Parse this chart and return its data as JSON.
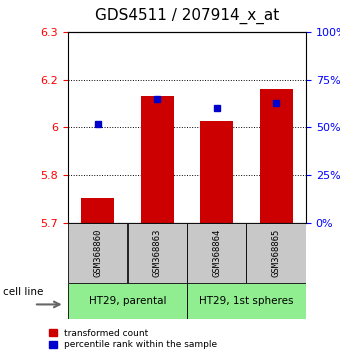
{
  "title": "GDS4511 / 207914_x_at",
  "samples": [
    "GSM368860",
    "GSM368863",
    "GSM368864",
    "GSM368865"
  ],
  "transformed_counts": [
    5.78,
    6.1,
    6.02,
    6.12
  ],
  "percentile_ranks": [
    52,
    65,
    60,
    63
  ],
  "ymin": 5.7,
  "ymax": 6.3,
  "yticks_left": [
    5.7,
    5.85,
    6.0,
    6.15,
    6.3
  ],
  "yticks_right": [
    0,
    25,
    50,
    75,
    100
  ],
  "bar_color": "#cc0000",
  "dot_color": "#0000cc",
  "bar_width": 0.55,
  "cell_lines": [
    "HT29, parental",
    "HT29, 1st spheres"
  ],
  "cell_line_groups": [
    [
      0,
      1
    ],
    [
      2,
      3
    ]
  ],
  "green_color": "#90ee90",
  "sample_box_color": "#c8c8c8",
  "legend_red_label": "transformed count",
  "legend_blue_label": "percentile rank within the sample",
  "title_fontsize": 11,
  "tick_fontsize": 8,
  "label_fontsize": 7.5
}
